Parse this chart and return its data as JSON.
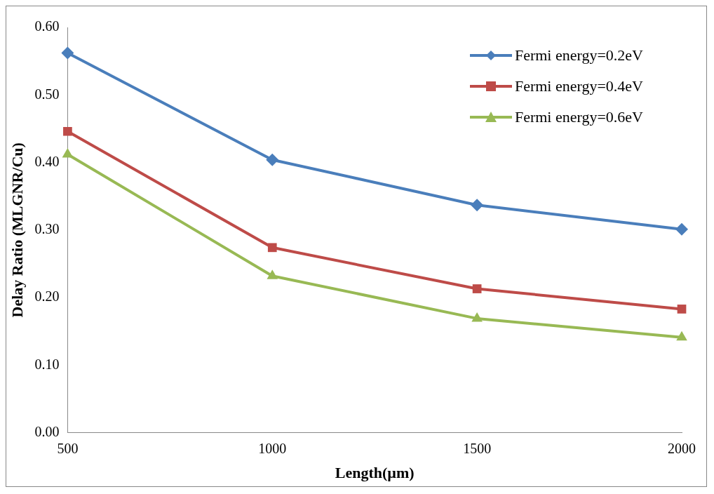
{
  "chart_data": {
    "type": "line",
    "xlabel": "Length(µm)",
    "ylabel": "Delay Ratio (MLGNR/Cu)",
    "categories": [
      "500",
      "1000",
      "1500",
      "2000"
    ],
    "series": [
      {
        "name": "Fermi energy=0.2eV",
        "color": "#4a7ebb",
        "marker": "diamond",
        "values": [
          0.562,
          0.404,
          0.337,
          0.301
        ]
      },
      {
        "name": "Fermi energy=0.4eV",
        "color": "#be4b48",
        "marker": "square",
        "values": [
          0.446,
          0.274,
          0.213,
          0.183
        ]
      },
      {
        "name": "Fermi energy=0.6eV",
        "color": "#98b954",
        "marker": "triangle",
        "values": [
          0.412,
          0.232,
          0.169,
          0.141
        ]
      }
    ],
    "ylim": [
      0,
      0.6
    ],
    "yticks": [
      {
        "value": 0,
        "label": "0.00"
      },
      {
        "value": 0.1,
        "label": "0.10"
      },
      {
        "value": 0.2,
        "label": "0.20"
      },
      {
        "value": 0.3,
        "label": "0.30"
      },
      {
        "value": 0.4,
        "label": "0.40"
      },
      {
        "value": 0.5,
        "label": "0.50"
      },
      {
        "value": 0.6,
        "label": "0.60"
      }
    ],
    "grid": false,
    "legend": "top right",
    "line_style": "solid"
  }
}
